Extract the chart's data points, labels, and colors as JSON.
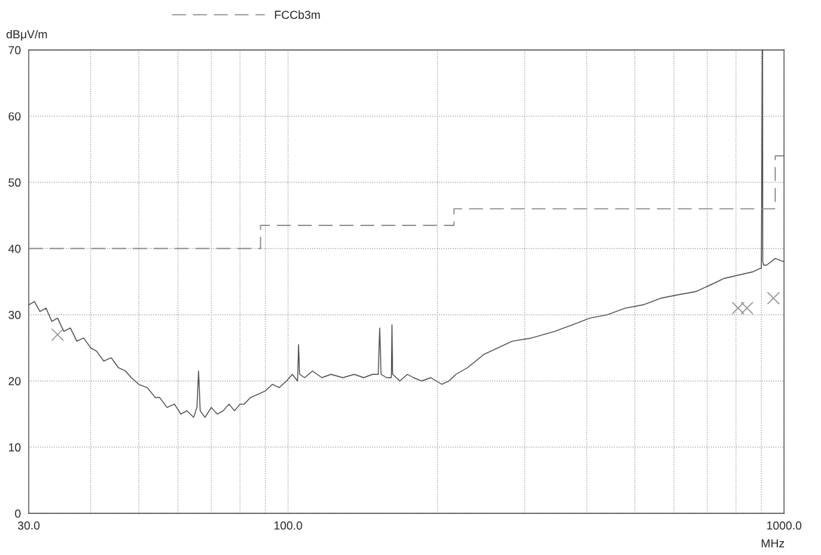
{
  "chart_data": {
    "type": "line",
    "xlabel": "MHz",
    "ylabel": "dBμV/m",
    "log": "x",
    "grid": true,
    "legend": "top",
    "xlim": [
      30,
      1000
    ],
    "ylim": [
      0,
      70
    ],
    "xticks": [
      {
        "value": 30,
        "label": "30.0"
      },
      {
        "value": 40,
        "label": null
      },
      {
        "value": 50,
        "label": null
      },
      {
        "value": 60,
        "label": null
      },
      {
        "value": 70,
        "label": null
      },
      {
        "value": 80,
        "label": null
      },
      {
        "value": 90,
        "label": null
      },
      {
        "value": 100,
        "label": "100.0"
      },
      {
        "value": 200,
        "label": null
      },
      {
        "value": 300,
        "label": null
      },
      {
        "value": 400,
        "label": null
      },
      {
        "value": 500,
        "label": null
      },
      {
        "value": 600,
        "label": null
      },
      {
        "value": 700,
        "label": null
      },
      {
        "value": 800,
        "label": null
      },
      {
        "value": 900,
        "label": null
      },
      {
        "value": 1000,
        "label": "1000.0"
      }
    ],
    "yticks": [
      0,
      10,
      20,
      30,
      40,
      50,
      60,
      70
    ],
    "series": [
      {
        "color": "#505050",
        "x": [
          30,
          30.8,
          31.6,
          32.5,
          33.4,
          34.3,
          35.3,
          36.4,
          37.5,
          38.7,
          40,
          41.1,
          42.5,
          44,
          45.5,
          47,
          48.3,
          50,
          52,
          54,
          55.1,
          57,
          59,
          60.8,
          62.5,
          64.5,
          65.5,
          66,
          66.5,
          68,
          70,
          72,
          74,
          76,
          78,
          80,
          81.6,
          84,
          87,
          90,
          93,
          96,
          99.3,
          102,
          104.5,
          105,
          105.5,
          108,
          112,
          117,
          122,
          129,
          136,
          142,
          148,
          152,
          153,
          154,
          158,
          161.5,
          162,
          162.5,
          168,
          174,
          179,
          186,
          194,
          204,
          211,
          218,
          230,
          248,
          265,
          283,
          310,
          345,
          375,
          406,
          440,
          478,
          520,
          564,
          610,
          664,
          710,
          758,
          810,
          866,
          895,
          900,
          904,
          905,
          906,
          910,
          922,
          960,
          1000
        ],
        "values": [
          31.5,
          32,
          30.5,
          31,
          29,
          29.5,
          27.5,
          28,
          26,
          26.5,
          25,
          24.5,
          23,
          23.5,
          22,
          21.5,
          20.5,
          19.5,
          19,
          17.5,
          17.5,
          16,
          16.5,
          15,
          15.5,
          14.5,
          16,
          21.5,
          15.5,
          14.5,
          16,
          15,
          15.5,
          16.5,
          15.5,
          16.5,
          16.5,
          17.5,
          18,
          18.5,
          19.5,
          19,
          20,
          21,
          20,
          25.5,
          21,
          20.5,
          21.5,
          20.5,
          21,
          20.5,
          21,
          20.5,
          21,
          21,
          28,
          21,
          20.5,
          20.5,
          28.5,
          21,
          20,
          21,
          20.5,
          20,
          20.5,
          19.5,
          20,
          21,
          22,
          24,
          25,
          26,
          26.5,
          27.5,
          28.5,
          29.5,
          30,
          31,
          31.5,
          32.5,
          33,
          33.5,
          34.5,
          35.5,
          36,
          36.5,
          37,
          37,
          70,
          70,
          38,
          37.5,
          37.5,
          38.5,
          38
        ]
      },
      {
        "type": "step",
        "name": "FCCb3m",
        "color": "#8a8a8a",
        "line_style": "dashed",
        "x": [
          30,
          88,
          216,
          960,
          1000
        ],
        "values": [
          40,
          43.5,
          46,
          54,
          54
        ]
      },
      {
        "type": "scatter",
        "marker": "cross",
        "color": "#8a8a8a",
        "x": [
          34.3,
          808,
          842,
          952
        ],
        "values": [
          27,
          31,
          31,
          32.5
        ]
      }
    ]
  }
}
